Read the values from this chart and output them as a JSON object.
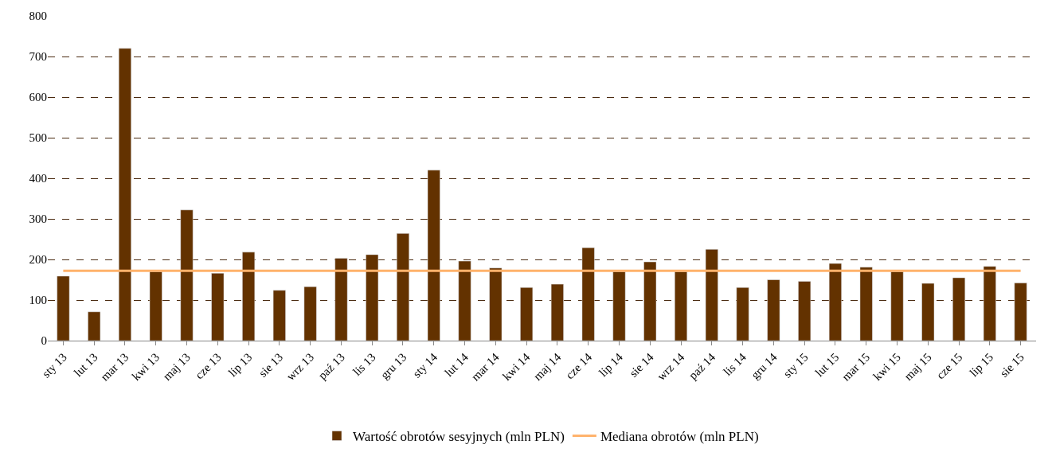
{
  "chart_data": {
    "type": "bar",
    "categories": [
      "sty 13",
      "lut 13",
      "mar 13",
      "kwi 13",
      "maj 13",
      "cze 13",
      "lip 13",
      "sie 13",
      "wrz 13",
      "paź 13",
      "lis 13",
      "gru 13",
      "sty 14",
      "lut 14",
      "mar 14",
      "kwi 14",
      "maj 14",
      "cze 14",
      "lip 14",
      "sie 14",
      "wrz 14",
      "paź 14",
      "lis 14",
      "gru 14",
      "sty 15",
      "lut 15",
      "mar 15",
      "kwi 15",
      "maj 15",
      "cze 15",
      "lip 15",
      "sie 15"
    ],
    "series": [
      {
        "name": "Wartość obrotów sesyjnych (mln PLN)",
        "color": "#633200",
        "values": [
          159,
          71,
          720,
          170,
          322,
          166,
          218,
          124,
          133,
          203,
          212,
          264,
          420,
          196,
          179,
          131,
          139,
          229,
          170,
          194,
          170,
          225,
          131,
          150,
          146,
          190,
          181,
          170,
          141,
          155,
          183,
          142
        ]
      },
      {
        "name": "Mediana obrotów (mln PLN)",
        "type": "line",
        "color": "#ffb26b",
        "values": [
          172,
          172,
          172,
          172,
          172,
          172,
          172,
          172,
          172,
          172,
          172,
          172,
          172,
          172,
          172,
          172,
          172,
          172,
          172,
          172,
          172,
          172,
          172,
          172,
          172,
          172,
          172,
          172,
          172,
          172,
          172,
          172
        ]
      }
    ],
    "ylim": [
      0,
      800
    ],
    "yticks": [
      0,
      100,
      200,
      300,
      400,
      500,
      600,
      700,
      800
    ],
    "grid": "y",
    "legend": "bottom",
    "marker": "none",
    "line_style": "solid"
  }
}
